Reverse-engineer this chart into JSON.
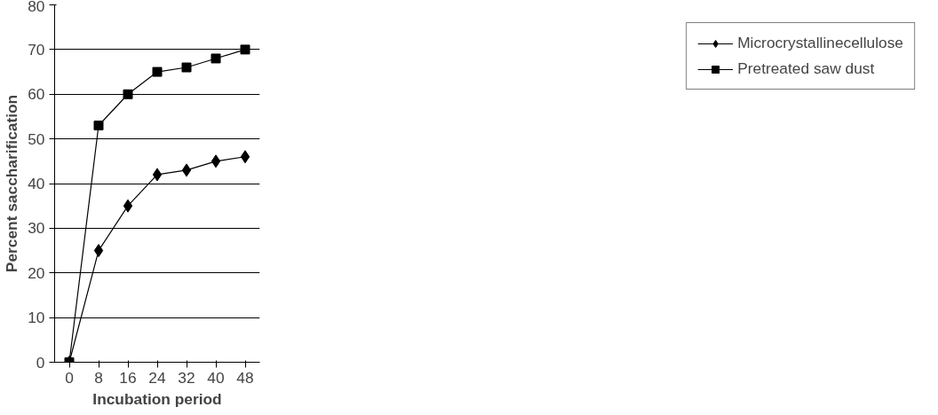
{
  "chart_data": {
    "type": "line",
    "xlabel": "Incubation period",
    "ylabel": "Percent saccharification",
    "categories": [
      "0",
      "8",
      "16",
      "24",
      "32",
      "40",
      "48"
    ],
    "series": [
      {
        "name": "Microcrystallinecellulose",
        "color": "#000000",
        "marker": "diamond",
        "values": [
          0,
          25,
          35,
          42,
          43,
          45,
          46
        ]
      },
      {
        "name": "Pretreated saw dust",
        "color": "#000000",
        "marker": "square",
        "values": [
          0,
          53,
          60,
          65,
          66,
          68,
          70
        ]
      }
    ],
    "ylim": [
      0,
      80
    ],
    "yticks": [
      0,
      10,
      20,
      30,
      40,
      50,
      60,
      70,
      80
    ],
    "grid": "y",
    "legend": "right",
    "line_style": "solid"
  }
}
